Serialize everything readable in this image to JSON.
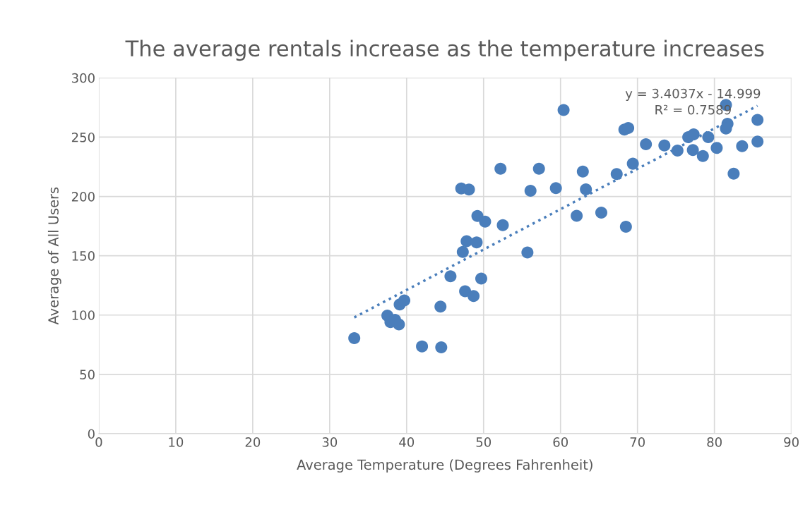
{
  "chart_data": {
    "type": "scatter",
    "title": "The average rentals increase as the temperature increases",
    "xlabel": "Average Temperature (Degrees Fahrenheit)",
    "ylabel": "Average of All Users",
    "xlim": [
      0,
      90
    ],
    "xticks": [
      0,
      10,
      20,
      30,
      40,
      50,
      60,
      70,
      80,
      90
    ],
    "ylim": [
      0,
      300
    ],
    "yticks": [
      0,
      50,
      100,
      150,
      200,
      250,
      300
    ],
    "grid": true,
    "series": [
      {
        "color": "#4a7ebb",
        "marker": "circle",
        "x": [
          33.2,
          37.5,
          37.9,
          38.5,
          39.0,
          39.1,
          39.7,
          42.0,
          44.5,
          44.4,
          45.7,
          47.1,
          48.1,
          47.3,
          47.8,
          49.1,
          47.6,
          48.7,
          49.2,
          50.2,
          49.7,
          52.2,
          52.5,
          55.7,
          56.1,
          57.2,
          60.4,
          59.4,
          62.9,
          63.3,
          62.1,
          65.3,
          67.3,
          69.4,
          68.5,
          68.3,
          68.8,
          71.1,
          73.5,
          75.2,
          76.6,
          77.3,
          77.2,
          78.5,
          79.2,
          80.3,
          81.5,
          81.7,
          81.5,
          83.6,
          82.5,
          85.6,
          85.6
        ],
        "values": [
          80.5,
          99.6,
          94.0,
          96.0,
          92.1,
          108.9,
          112.3,
          73.6,
          72.8,
          107.1,
          132.7,
          206.7,
          205.8,
          153.2,
          162.3,
          161.3,
          120.1,
          116.1,
          183.5,
          178.8,
          130.8,
          223.4,
          175.8,
          152.8,
          204.8,
          223.4,
          272.8,
          207.0,
          221.0,
          206.0,
          183.7,
          186.3,
          218.9,
          227.6,
          174.4,
          256.4,
          257.7,
          244.0,
          243.0,
          238.7,
          250.0,
          252.4,
          239.1,
          234.1,
          250.0,
          240.9,
          277.2,
          261.3,
          257.3,
          242.4,
          219.2,
          264.5,
          246.3
        ]
      },
      {
        "type": "line",
        "color": "#4a7ebb",
        "line_style": "dotted",
        "marker": "none",
        "x": [
          33.2,
          85.6
        ],
        "values": [
          98.0,
          276.4
        ]
      }
    ],
    "annotations": [
      "y = 3.4037x - 14.999\nR² = 0.7589"
    ],
    "legend": false
  }
}
